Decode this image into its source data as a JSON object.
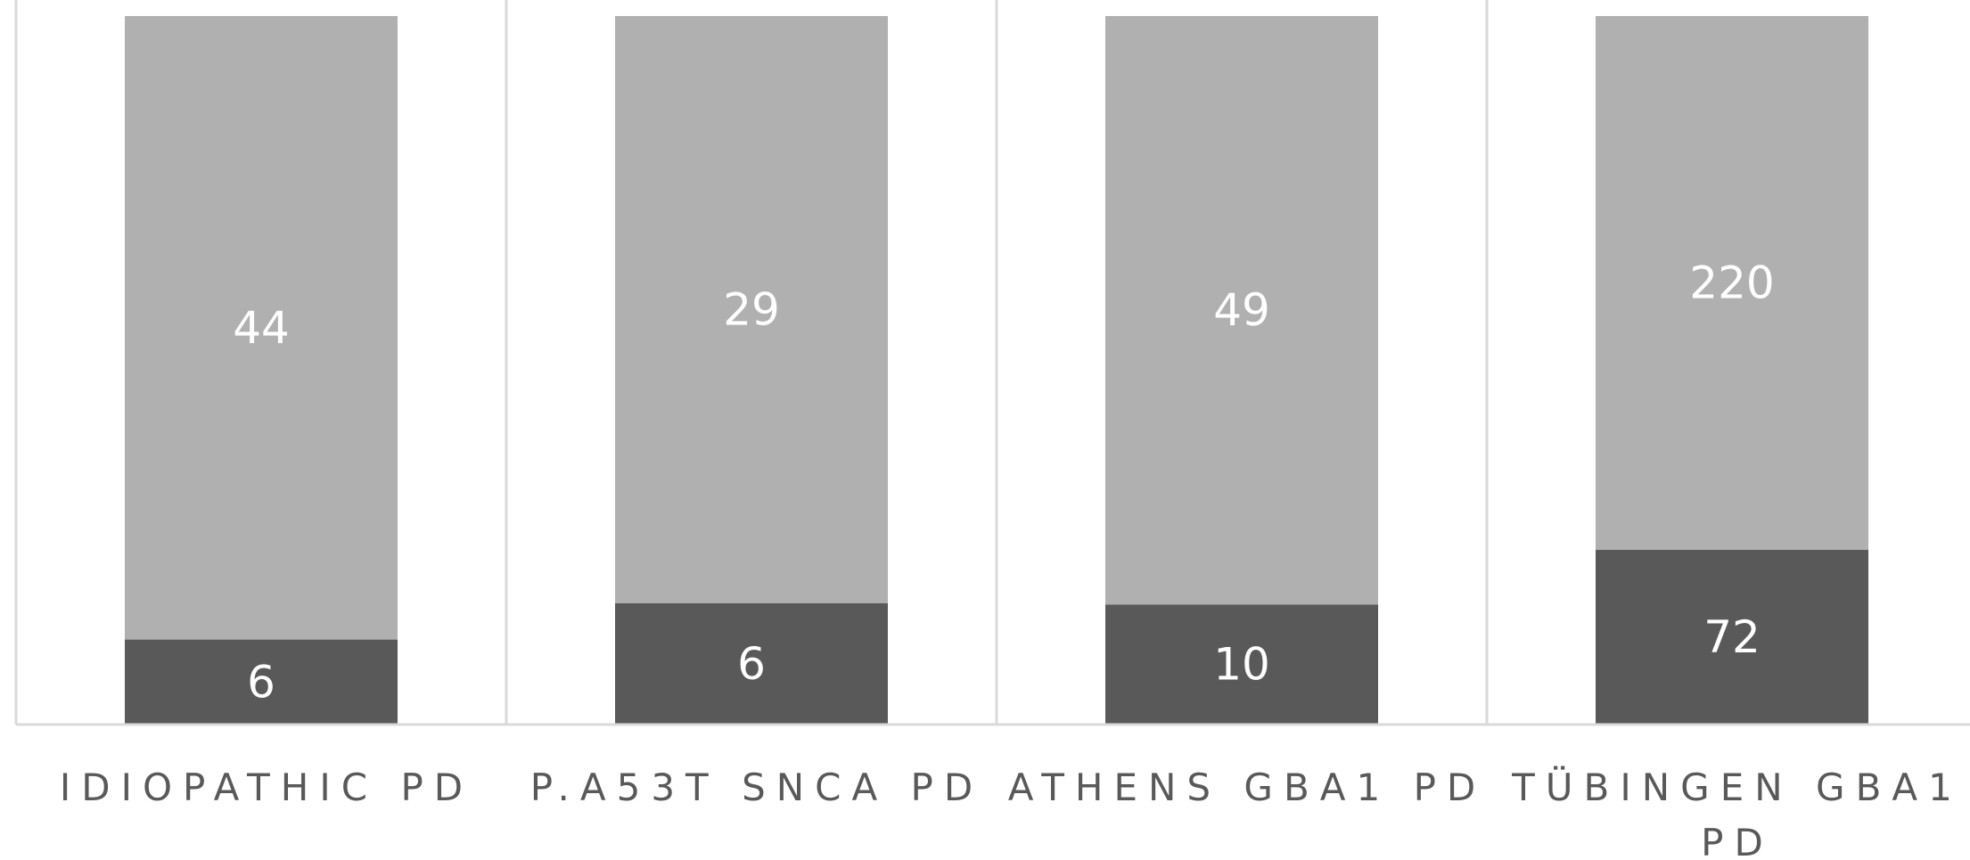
{
  "chart_data": {
    "type": "bar",
    "stacked": true,
    "normalized": "percent",
    "categories": [
      [
        "IDIOPATHIC PD"
      ],
      [
        "P.A53T SNCA PD"
      ],
      [
        "ATHENS GBA1 PD"
      ],
      [
        "TÜBINGEN GBA1",
        "PD"
      ]
    ],
    "series": [
      {
        "values": [
          6,
          6,
          10,
          72
        ],
        "color": "#595959"
      },
      {
        "values": [
          44,
          29,
          49,
          220
        ],
        "color": "#b0b0b0"
      }
    ],
    "title": "",
    "xlabel": "",
    "ylabel": "",
    "ylim": [
      0,
      100
    ],
    "grid": "vertical separators",
    "legend": "none"
  }
}
